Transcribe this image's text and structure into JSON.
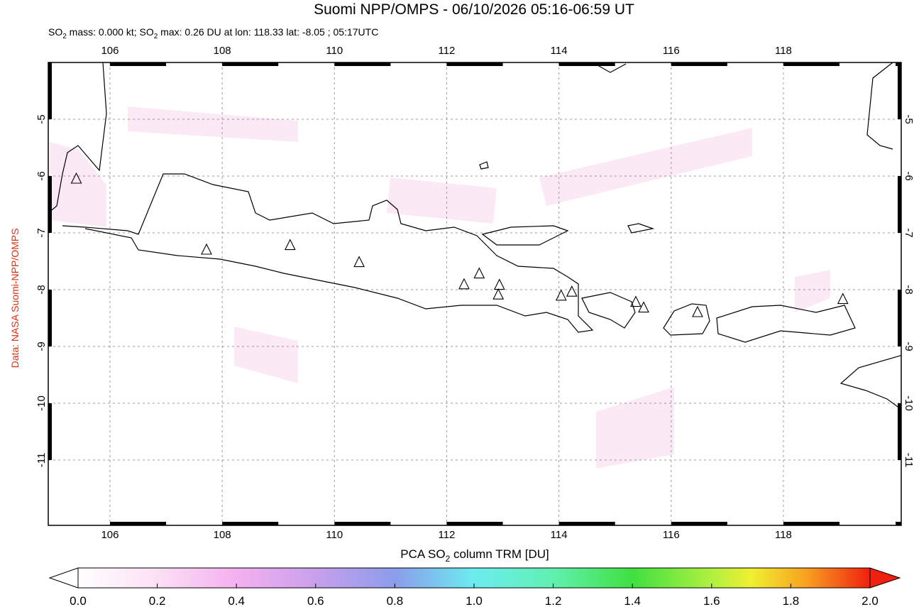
{
  "chart_data": {
    "type": "map",
    "title": "Suomi NPP/OMPS - 06/10/2026 05:16-06:59 UT",
    "subtitle_parts": [
      "SO",
      "2",
      " mass: 0.000 kt; SO",
      "2",
      " max: 0.26 DU at lon: 118.33 lat: -8.05 ; 05:17UTC"
    ],
    "source_label": "Data: NASA Suomi-NPP/OMPS",
    "xlim": [
      104.9,
      120.1
    ],
    "ylim": [
      -12.15,
      -4.0
    ],
    "xticks": [
      106,
      108,
      110,
      112,
      114,
      116,
      118
    ],
    "yticks": [
      -5,
      -6,
      -7,
      -8,
      -9,
      -10,
      -11
    ],
    "grid": true,
    "volcanoes": {
      "lon": [
        105.4,
        107.72,
        109.21,
        110.44,
        112.31,
        112.58,
        112.94,
        112.92,
        114.04,
        114.23,
        115.37,
        115.51,
        116.47,
        119.06
      ],
      "lat": [
        -6.05,
        -7.3,
        -7.22,
        -7.52,
        -7.91,
        -7.72,
        -7.92,
        -8.09,
        -8.11,
        -8.04,
        -8.22,
        -8.32,
        -8.4,
        -8.17
      ]
    },
    "colorbar": {
      "label_parts": [
        "PCA SO",
        "2",
        " column TRM [DU]"
      ],
      "clim": [
        0,
        2
      ],
      "ticks": [
        {
          "value": 0,
          "label": "0.0"
        },
        0.2,
        0.4,
        0.6,
        0.8,
        {
          "value": 1,
          "label": "1.0"
        },
        1.2,
        1.4,
        1.6,
        1.8,
        {
          "value": 2,
          "label": "2.0"
        }
      ]
    }
  }
}
